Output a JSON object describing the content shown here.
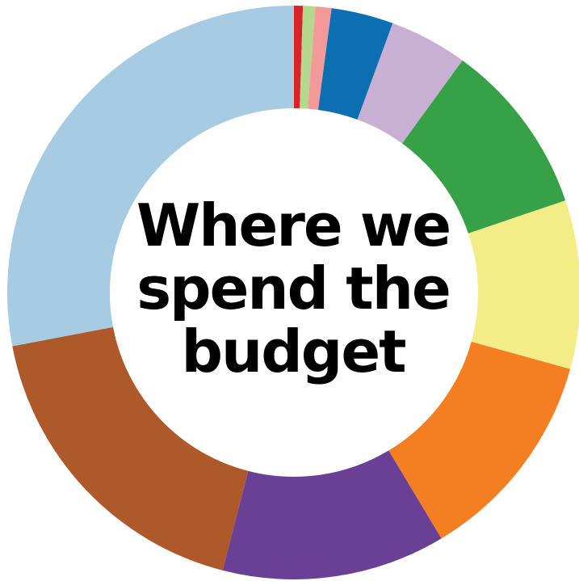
{
  "chart_data": {
    "type": "pie",
    "title_lines": [
      "Where we",
      "spend the",
      "budget"
    ],
    "legend": "none",
    "data_labels": "none",
    "slices": [
      {
        "value": 0.5,
        "color": "#d7242a"
      },
      {
        "value": 0.7,
        "color": "#b3d88e"
      },
      {
        "value": 0.9,
        "color": "#f4999a"
      },
      {
        "value": 3.5,
        "color": "#0c6fb1"
      },
      {
        "value": 4.4,
        "color": "#c8b0d4"
      },
      {
        "value": 9.8,
        "color": "#37a148"
      },
      {
        "value": 9.5,
        "color": "#f4ed87"
      },
      {
        "value": 12.1,
        "color": "#f37f22"
      },
      {
        "value": 12.6,
        "color": "#6a3f96"
      },
      {
        "value": 18.0,
        "color": "#ad5929"
      },
      {
        "value": 28.0,
        "color": "#a7cbe2"
      }
    ]
  }
}
